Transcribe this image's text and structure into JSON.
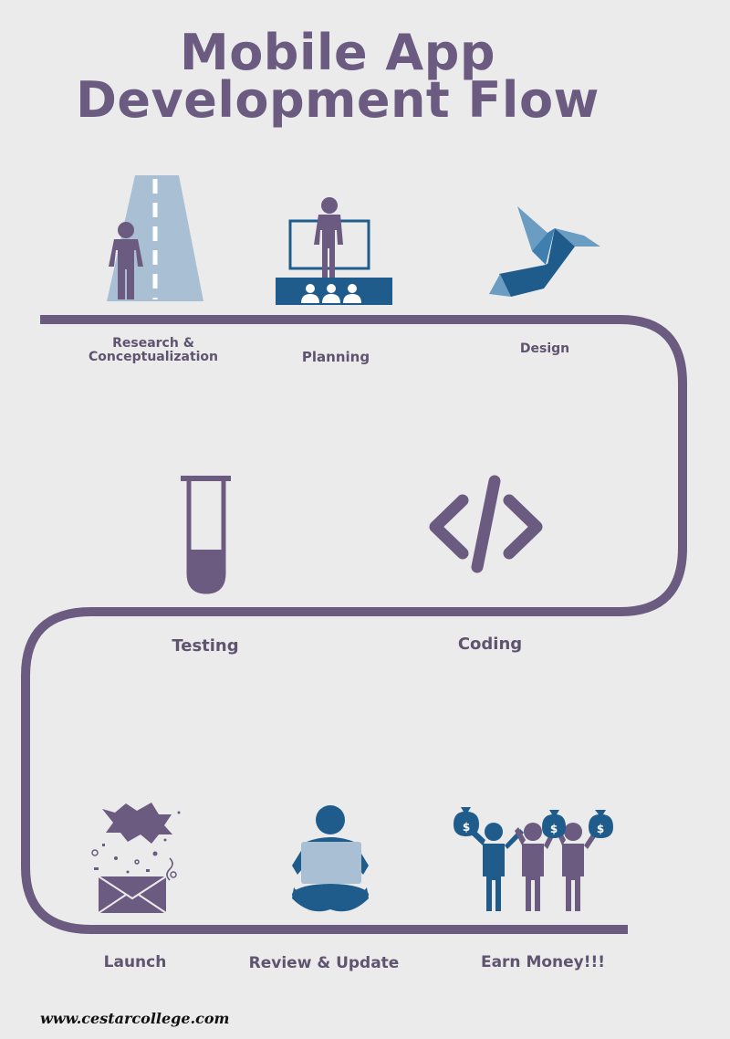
{
  "title": {
    "line1": "Mobile App",
    "line2": "Development Flow"
  },
  "steps": {
    "research": {
      "line1": "Research &",
      "line2": "Conceptualization",
      "icon": "road-person-icon"
    },
    "planning": {
      "label": "Planning",
      "icon": "presenter-audience-icon"
    },
    "design": {
      "label": "Design",
      "icon": "origami-bird-icon"
    },
    "testing": {
      "label": "Testing",
      "icon": "test-tube-icon"
    },
    "coding": {
      "label": "Coding",
      "icon": "code-brackets-icon"
    },
    "launch": {
      "label": "Launch",
      "icon": "envelope-confetti-icon"
    },
    "review": {
      "label": "Review & Update",
      "icon": "person-laptop-icon"
    },
    "earn": {
      "label": "Earn Money!!!",
      "icon": "money-bags-people-icon"
    }
  },
  "footer": {
    "url": "www.cestarcollege.com"
  },
  "colors": {
    "background": "#ebebeb",
    "purple": "#6b5b80",
    "blue": "#1f5c8c",
    "lightBlue": "#a9c0d4"
  }
}
